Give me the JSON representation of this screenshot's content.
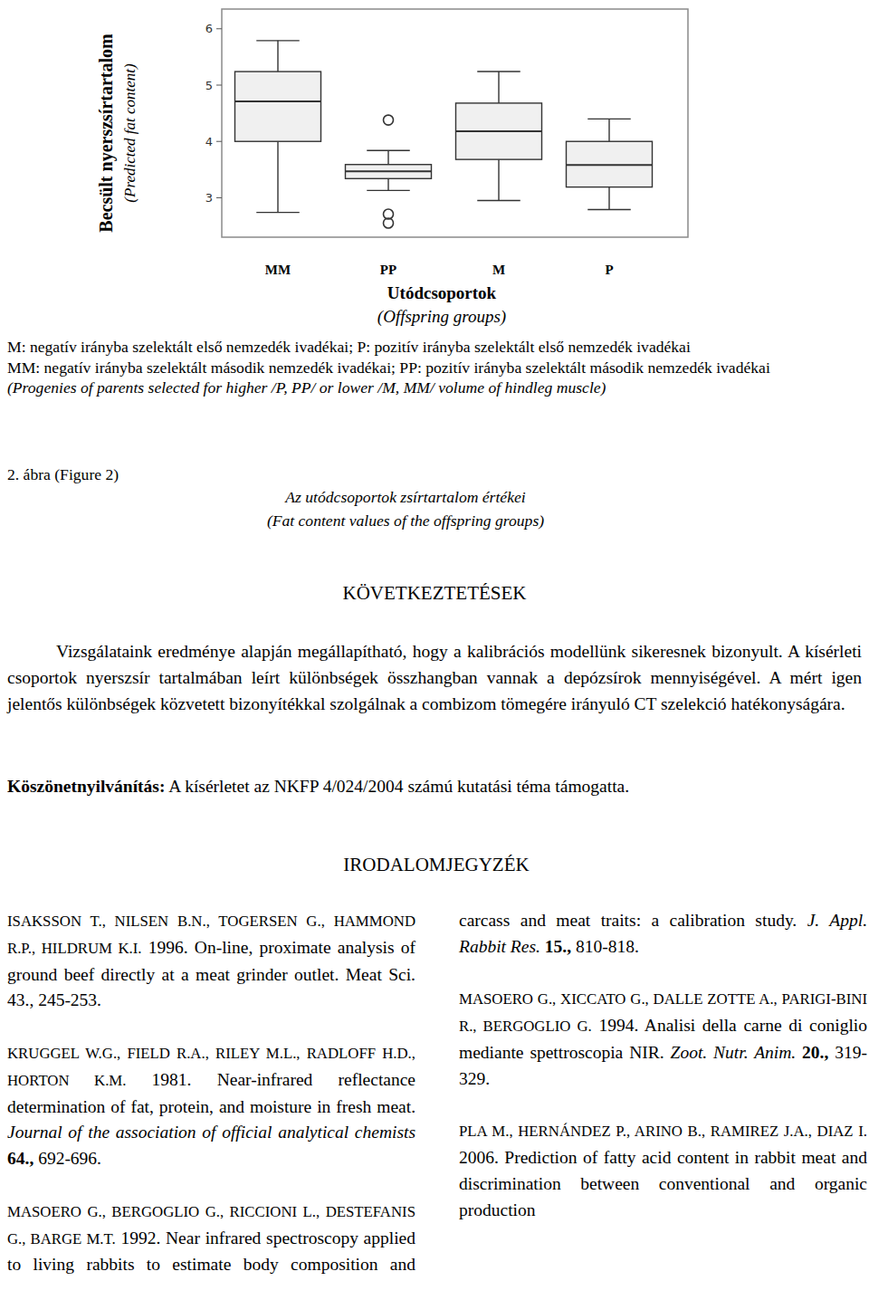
{
  "chart_data": {
    "type": "box",
    "categories": [
      "MM",
      "PP",
      "M",
      "P"
    ],
    "xlabel": "Utódcsoportok",
    "xlabel_subtitle": "(Offspring groups)",
    "ylabel": "Becsült nyerszsírtartalom",
    "ylabel_subtitle": "(Predicted fat content)",
    "ylim": [
      2.3,
      6.35
    ],
    "yticks": [
      3,
      4,
      5,
      6
    ],
    "color": "#f0f0f0",
    "boxes": [
      {
        "whislo": 2.74,
        "q1": 4.0,
        "med": 4.71,
        "q3": 5.24,
        "whishi": 5.79,
        "fliers": []
      },
      {
        "whislo": 3.13,
        "q1": 3.34,
        "med": 3.47,
        "q3": 3.59,
        "whishi": 3.84,
        "fliers": [
          4.38,
          2.71,
          2.55
        ]
      },
      {
        "whislo": 2.95,
        "q1": 3.68,
        "med": 4.18,
        "q3": 4.68,
        "whishi": 5.24,
        "fliers": []
      },
      {
        "whislo": 2.79,
        "q1": 3.19,
        "med": 3.58,
        "q3": 4.0,
        "whishi": 4.4,
        "fliers": []
      }
    ]
  },
  "document": {
    "notes": [
      "M: negatív irányba szelektált első nemzedék ivadékai; P: pozitív irányba szelektált első nemzedék ivadékai",
      "MM: negatív irányba szelektált második nemzedék ivadékai; PP: pozitív irányba szelektált második nemzedék ivadékai"
    ],
    "notes_en": "(Progenies of parents selected for higher /P, PP/ or lower /M, MM/ volume of hindleg muscle)",
    "figure_label": "2. ábra (Figure 2)",
    "caption": "Az utódcsoportok zsírtartalom értékei",
    "caption_en": "(Fat content values of the offspring groups)",
    "section_title": "KÖVETKEZTETÉSEK",
    "paragraph": "Vizsgálataink eredménye alapján megállapítható, hogy a kalibrációs modellünk sikeresnek bizonyult. A kísérleti csoportok nyerszsír tartalmában leírt különbségek összhangban vannak a depózsírok mennyiségével. A mért igen jelentős különbségek közvetett bizonyítékkal szolgálnak a combizom tömegére irányuló CT szelekció hatékonyságára.",
    "ack_label": "Köszönetnyilvánítás:",
    "ack_text": "A kísérletet az NKFP 4/024/2004 számú kutatási téma támogatta.",
    "references_title": "IRODALOMJEGYZÉK",
    "references": [
      {
        "parts": [
          {
            "text": "ISAKSSON T., NILSEN B.N., TOGERSEN G., HAMMOND R.P., HILDRUM K.I.",
            "style": "smallcaps"
          },
          {
            "text": "1996. On-line, proximate analysis of ground beef directly at a meat grinder outlet. Meat Sci. 43., 245-253.",
            "style": "normal"
          }
        ]
      },
      {
        "parts": [
          {
            "text": "KRUGGEL W.G., FIELD R.A., RILEY M.L., RADLOFF H.D., HORTON K.M.",
            "style": "smallcaps"
          },
          {
            "text": "1981. Near-infrared reflectance determination of fat, protein, and moisture in fresh meat.",
            "style": "normal"
          },
          {
            "text": "Journal of the association of official analytical chemists",
            "style": "italic"
          },
          {
            "text": "64.,",
            "style": "bold"
          },
          {
            "text": "692-696.",
            "style": "normal"
          }
        ]
      },
      {
        "parts": [
          {
            "text": "MASOERO G., BERGOGLIO G., RICCIONI L., DESTEFANIS G., BARGE M.T.",
            "style": "smallcaps"
          },
          {
            "text": "1992. Near infrared spectroscopy applied to living rabbits to estimate body composition and carcass and meat traits: a calibration study.",
            "style": "normal"
          },
          {
            "text": "J. Appl. Rabbit Res.",
            "style": "italic"
          },
          {
            "text": "15.,",
            "style": "bold"
          },
          {
            "text": "810-818.",
            "style": "normal"
          }
        ]
      },
      {
        "parts": [
          {
            "text": "MASOERO G., XICCATO G., DALLE ZOTTE A., PARIGI-BINI R., BERGOGLIO G.",
            "style": "smallcaps"
          },
          {
            "text": "1994. Analisi della carne di coniglio mediante spettroscopia NIR.",
            "style": "normal"
          },
          {
            "text": "Zoot. Nutr. Anim.",
            "style": "italic"
          },
          {
            "text": "20.,",
            "style": "bold"
          },
          {
            "text": "319-329.",
            "style": "normal"
          }
        ]
      },
      {
        "parts": [
          {
            "text": "PLA M., HERNÁNDEZ P., ARINO B., RAMIREZ J.A., DIAZ I.",
            "style": "smallcaps"
          },
          {
            "text": "2006. Prediction of fatty acid content in rabbit meat and discrimination between conventional and organic production",
            "style": "normal"
          }
        ]
      }
    ]
  }
}
